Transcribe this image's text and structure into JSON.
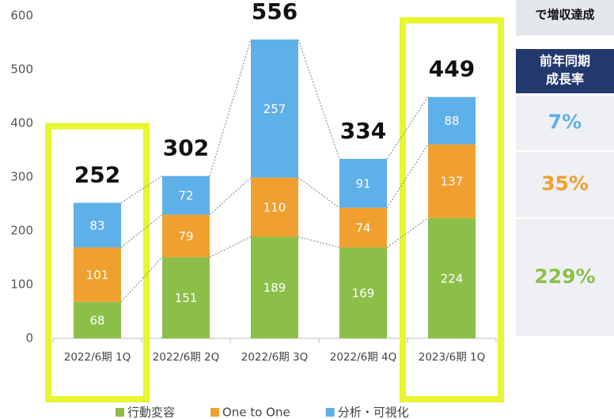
{
  "chart_data": {
    "type": "stacked_bar",
    "categories": [
      "2022/6期 1Q",
      "2022/6期 2Q",
      "2022/6期 3Q",
      "2022/6期 4Q",
      "2023/6期 1Q"
    ],
    "series": [
      {
        "name": "行動変容",
        "color": "#8cbf48",
        "values": [
          68,
          151,
          189,
          169,
          224
        ]
      },
      {
        "name": "One to One",
        "color": "#f0a02e",
        "values": [
          101,
          79,
          110,
          74,
          137
        ]
      },
      {
        "name": "分析・可視化",
        "color": "#5eb0e8",
        "values": [
          83,
          72,
          257,
          91,
          88
        ]
      }
    ],
    "totals": [
      252,
      302,
      556,
      334,
      449
    ],
    "highlight": [
      0,
      4
    ],
    "highlight_color": "#e8f531",
    "ylim": [
      0,
      600
    ],
    "yticks": [
      0,
      100,
      200,
      300,
      400,
      500,
      600
    ],
    "grid": false,
    "legend": "bottom"
  },
  "side_panel": {
    "header": "で増収達成",
    "title": [
      "前年同期",
      "成長率"
    ],
    "values": [
      7,
      35,
      229
    ],
    "value_labels": [
      "7%",
      "35%",
      "229%"
    ],
    "colors": [
      "#5eb0e8",
      "#f0a02e",
      "#8cbf48"
    ]
  }
}
